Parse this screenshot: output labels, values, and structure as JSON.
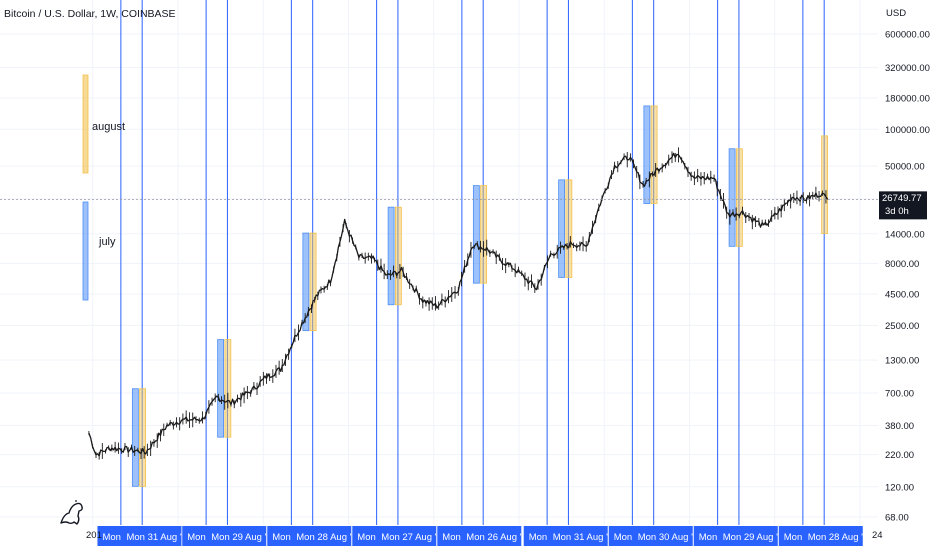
{
  "header": {
    "symbol_title": "Bitcoin / U.S. Dollar, 1W, COINBASE",
    "currency": "USD"
  },
  "colors": {
    "july": "#4d8ef5",
    "august": "#f2c14e",
    "vline": "#2962ff",
    "candle": "#1a1a1a",
    "axis_label": "#131722",
    "date_tag_bg": "#2962ff",
    "price_tag_bg": "#131722"
  },
  "legend": {
    "august_label": "august",
    "july_label": "july"
  },
  "price_tag": {
    "value": "26749.77",
    "countdown": "3d 0h"
  },
  "date_tags": [
    {
      "first": "Mon",
      "second": "Mon 31 Aug '15"
    },
    {
      "first": "Mon",
      "second": "Mon 29 Aug '16"
    },
    {
      "first": "Mon",
      "second": "Mon 28 Aug '17"
    },
    {
      "first": "Mon",
      "second": "Mon 27 Aug '18"
    },
    {
      "first": "Mon",
      "second": "Mon 26 Aug '19"
    },
    {
      "first": "Mon",
      "second": "Mon 31 Aug '20"
    },
    {
      "first": "Mon",
      "second": "Mon 30 Aug '21"
    },
    {
      "first": "Mon",
      "second": "Mon 29 Aug '22"
    },
    {
      "first": "Mon",
      "second": "Mon 28 Aug '23"
    }
  ],
  "axis_edge_labels": {
    "left": "201",
    "right": "24"
  },
  "chart_data": {
    "type": "line",
    "title": "Bitcoin / U.S. Dollar, 1W, COINBASE",
    "y_scale": "log",
    "y_ticks": [
      68,
      120,
      220,
      380,
      700,
      1300,
      2500,
      4500,
      8000,
      14000,
      27000,
      50000,
      100000,
      180000,
      320000,
      600000
    ],
    "y_tick_labels": [
      "68.00",
      "120.00",
      "220.00",
      "380.00",
      "700.00",
      "1300.00",
      "2500.00",
      "4500.00",
      "8000.00",
      "14000.00",
      "27000.00",
      "50000.00",
      "100000.00",
      "180000.00",
      "320000.00",
      "600000.00"
    ],
    "last_price": 26749.77,
    "series": [
      {
        "x": [
          "2014-12",
          "2015-01",
          "2015-03",
          "2015-06",
          "2015-08",
          "2015-11",
          "2016-01",
          "2016-04",
          "2016-06",
          "2016-08",
          "2016-11",
          "2017-01",
          "2017-03",
          "2017-05",
          "2017-06",
          "2017-08",
          "2017-10",
          "2017-12",
          "2018-02",
          "2018-04",
          "2018-06",
          "2018-08",
          "2018-11",
          "2019-01",
          "2019-04",
          "2019-06",
          "2019-08",
          "2019-10",
          "2019-12",
          "2020-03",
          "2020-05",
          "2020-08",
          "2020-10",
          "2020-12",
          "2021-02",
          "2021-04",
          "2021-06",
          "2021-08",
          "2021-11",
          "2022-01",
          "2022-04",
          "2022-06",
          "2022-08",
          "2022-11",
          "2023-01",
          "2023-03",
          "2023-05",
          "2023-07",
          "2023-08"
        ],
        "values": [
          330,
          220,
          250,
          240,
          230,
          380,
          420,
          430,
          650,
          580,
          740,
          950,
          1100,
          2000,
          2600,
          4300,
          5800,
          17500,
          9000,
          8700,
          6300,
          7000,
          4000,
          3600,
          5000,
          11500,
          10500,
          8500,
          7200,
          5000,
          9500,
          11700,
          11000,
          25000,
          50000,
          60000,
          35000,
          47000,
          65000,
          40000,
          40000,
          20000,
          21000,
          16000,
          21000,
          28000,
          27000,
          30000,
          26750
        ]
      }
    ],
    "highlight_bands": [
      {
        "month": "july",
        "years": [
          2015,
          2016,
          2017,
          2018,
          2019,
          2020,
          2021,
          2022
        ]
      },
      {
        "month": "august",
        "years": [
          2015,
          2016,
          2017,
          2018,
          2019,
          2020,
          2021,
          2022,
          2023
        ]
      }
    ],
    "vertical_markers": [
      "2015-08-31",
      "2016-08-29",
      "2017-08-28",
      "2018-08-27",
      "2019-08-26",
      "2020-08-31",
      "2021-08-30",
      "2022-08-29",
      "2023-08-28"
    ]
  }
}
